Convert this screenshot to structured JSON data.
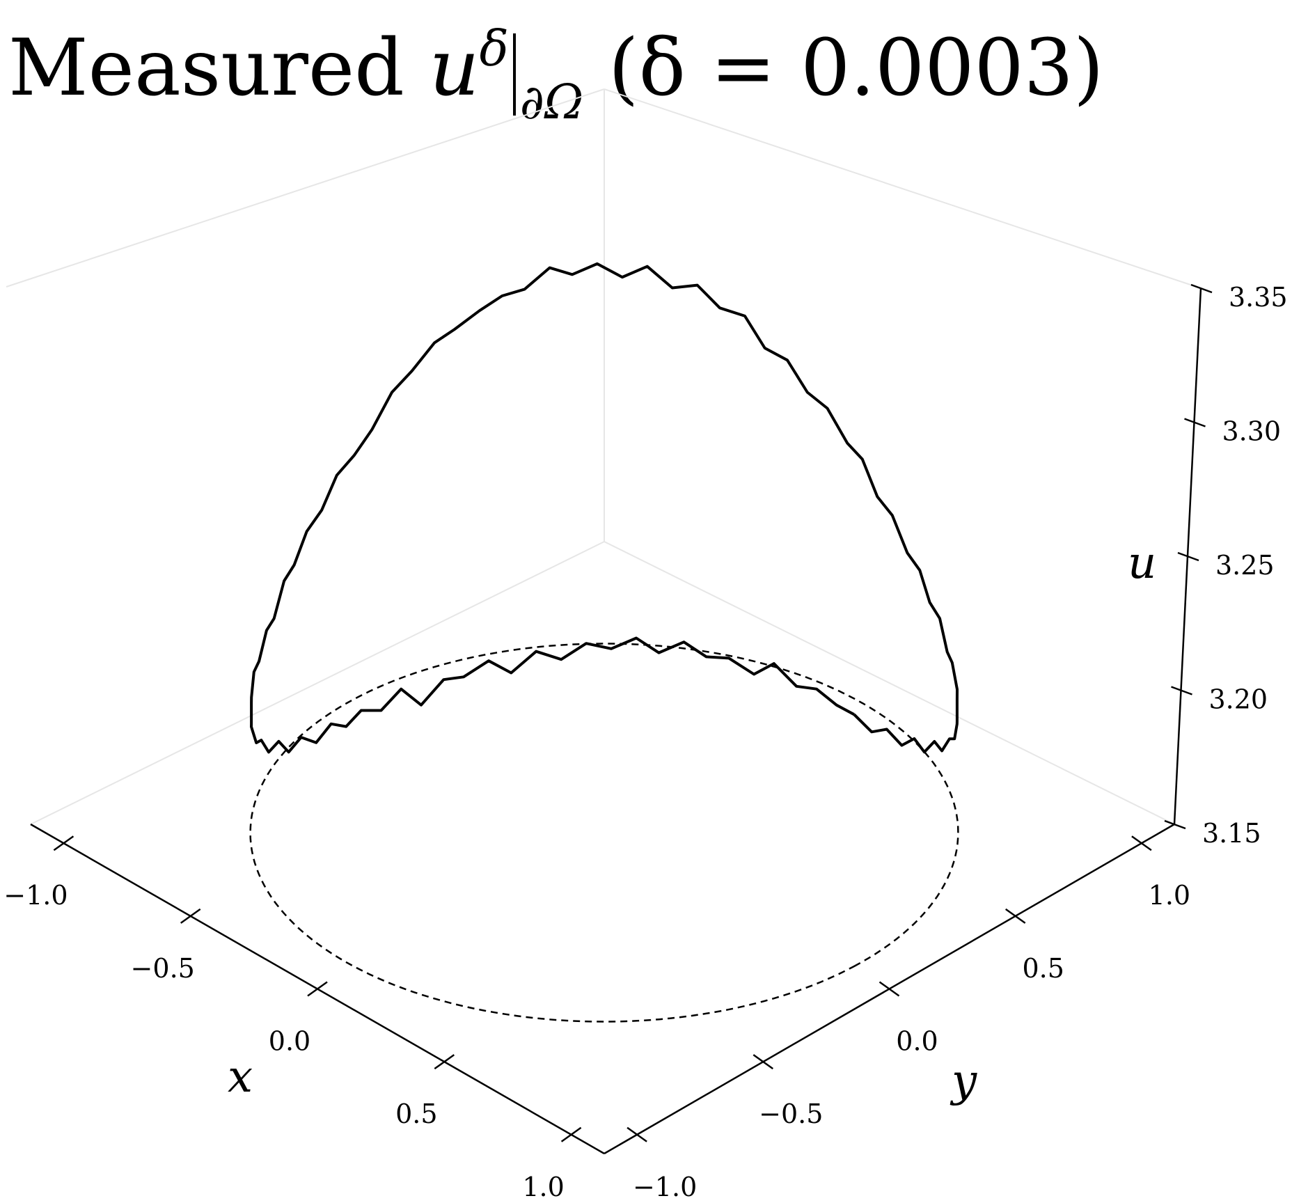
{
  "chart_data": {
    "type": "line3d",
    "title": {
      "prefix": "Measured",
      "var": "u",
      "superscript": "δ",
      "subscript": "∂Ω",
      "suffix": "(δ = 0.0003)"
    },
    "xlabel": "x",
    "ylabel": "y",
    "zlabel": "u",
    "xlim": [
      -1.13,
      1.13
    ],
    "ylim": [
      -1.13,
      1.13
    ],
    "zlim": [
      3.15,
      3.35
    ],
    "xticks": [
      "−1.0",
      "−0.5",
      "0.0",
      "0.5",
      "1.0"
    ],
    "xtick_values": [
      -1.0,
      -0.5,
      0.0,
      0.5,
      1.0
    ],
    "yticks": [
      "−1.0",
      "−0.5",
      "0.0",
      "0.5",
      "1.0"
    ],
    "ytick_values": [
      -1.0,
      -0.5,
      0.0,
      0.5,
      1.0
    ],
    "zticks": [
      "3.15",
      "3.20",
      "3.25",
      "3.30",
      "3.35"
    ],
    "ztick_values": [
      3.15,
      3.2,
      3.25,
      3.3,
      3.35
    ],
    "grid": false,
    "series": [
      {
        "style": "solid",
        "color": "#000000",
        "x": [
          1.0,
          1.0,
          0.99,
          0.98,
          0.96,
          0.94,
          0.91,
          0.88,
          0.85,
          0.81,
          0.77,
          0.72,
          0.67,
          0.62,
          0.56,
          0.5,
          0.44,
          0.37,
          0.31,
          0.24,
          0.17,
          0.1,
          0.03,
          -0.03,
          -0.1,
          -0.17,
          -0.24,
          -0.31,
          -0.37,
          -0.44,
          -0.5,
          -0.56,
          -0.62,
          -0.67,
          -0.72,
          -0.77,
          -0.81,
          -0.85,
          -0.88,
          -0.91,
          -0.94,
          -0.96,
          -0.98,
          -0.99,
          -1.0,
          -1.0,
          -1.0,
          -0.99,
          -0.98,
          -0.96,
          -0.94,
          -0.91,
          -0.88,
          -0.85,
          -0.81,
          -0.77,
          -0.72,
          -0.67,
          -0.62,
          -0.56,
          -0.5,
          -0.44,
          -0.37,
          -0.31,
          -0.24,
          -0.17,
          -0.1,
          -0.03,
          0.03,
          0.1,
          0.17,
          0.24,
          0.31,
          0.37,
          0.44,
          0.5,
          0.56,
          0.62,
          0.67,
          0.72,
          0.77,
          0.81,
          0.85,
          0.88,
          0.91,
          0.94,
          0.96,
          0.98,
          0.99,
          1.0
        ],
        "y": [
          0.0,
          0.07,
          0.14,
          0.21,
          0.28,
          0.34,
          0.41,
          0.47,
          0.53,
          0.59,
          0.64,
          0.69,
          0.74,
          0.79,
          0.83,
          0.87,
          0.9,
          0.93,
          0.95,
          0.97,
          0.98,
          0.99,
          1.0,
          1.0,
          0.99,
          0.98,
          0.97,
          0.95,
          0.93,
          0.9,
          0.87,
          0.83,
          0.79,
          0.74,
          0.69,
          0.64,
          0.59,
          0.53,
          0.47,
          0.41,
          0.34,
          0.28,
          0.21,
          0.14,
          0.07,
          0.0,
          -0.07,
          -0.14,
          -0.21,
          -0.28,
          -0.34,
          -0.41,
          -0.47,
          -0.53,
          -0.59,
          -0.64,
          -0.69,
          -0.74,
          -0.79,
          -0.83,
          -0.87,
          -0.9,
          -0.93,
          -0.95,
          -0.97,
          -0.98,
          -0.99,
          -1.0,
          -1.0,
          -0.99,
          -0.98,
          -0.97,
          -0.95,
          -0.93,
          -0.9,
          -0.87,
          -0.83,
          -0.79,
          -0.74,
          -0.69,
          -0.64,
          -0.59,
          -0.53,
          -0.47,
          -0.41,
          -0.34,
          -0.28,
          -0.21,
          -0.14,
          -0.07
        ],
        "u": [
          3.244,
          3.234,
          3.231,
          3.221,
          3.219,
          3.21,
          3.209,
          3.201,
          3.201,
          3.196,
          3.197,
          3.193,
          3.196,
          3.195,
          3.2,
          3.199,
          3.207,
          3.208,
          3.216,
          3.218,
          3.228,
          3.231,
          3.241,
          3.244,
          3.254,
          3.257,
          3.266,
          3.268,
          3.278,
          3.279,
          3.286,
          3.284,
          3.291,
          3.287,
          3.292,
          3.288,
          3.291,
          3.284,
          3.283,
          3.279,
          3.274,
          3.271,
          3.263,
          3.258,
          3.247,
          3.241,
          3.237,
          3.228,
          3.224,
          3.216,
          3.214,
          3.205,
          3.205,
          3.198,
          3.199,
          3.194,
          3.197,
          3.194,
          3.198,
          3.197,
          3.203,
          3.203,
          3.212,
          3.212,
          3.222,
          3.224,
          3.235,
          3.238,
          3.247,
          3.25,
          3.261,
          3.258,
          3.27,
          3.273,
          3.281,
          3.278,
          3.287,
          3.285,
          3.291,
          3.289,
          3.293,
          3.287,
          3.29,
          3.283,
          3.281,
          3.273,
          3.275,
          3.264,
          3.26,
          3.251
        ]
      },
      {
        "style": "dashed",
        "color": "#000000",
        "shape": "unit circle",
        "u": 3.15
      }
    ]
  }
}
